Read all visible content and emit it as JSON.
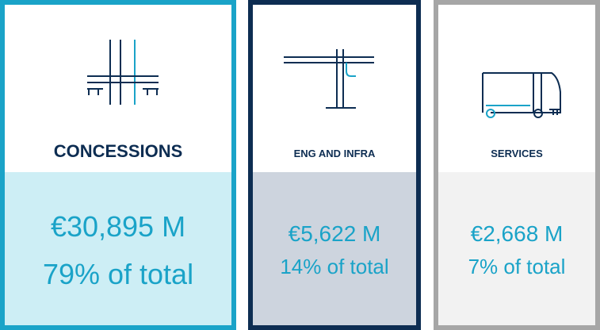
{
  "cards": [
    {
      "title": "CONCESSIONS",
      "amount": "€30,895 M",
      "share": "79% of total"
    },
    {
      "title": "ENG AND INFRA",
      "amount": "€5,622 M",
      "share": "14% of total"
    },
    {
      "title": "SERVICES",
      "amount": "€2,668 M",
      "share": "7% of total"
    }
  ]
}
